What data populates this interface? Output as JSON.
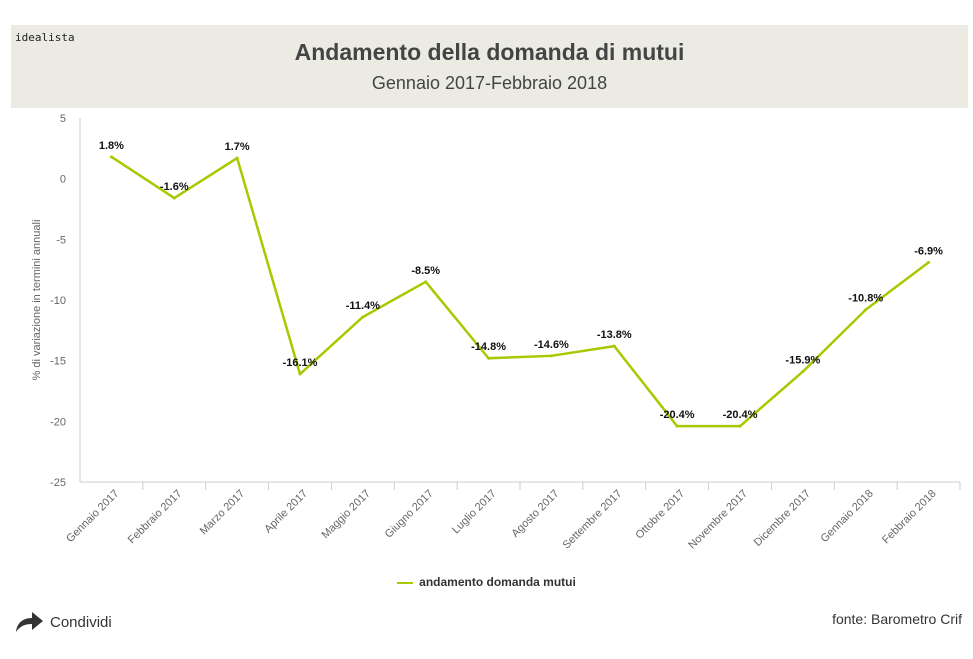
{
  "brand": "idealista",
  "header": {
    "title": "Andamento della domanda di mutui",
    "subtitle": "Gennaio 2017-Febbraio 2018"
  },
  "chart_data": {
    "type": "line",
    "title": "Andamento della domanda di mutui",
    "subtitle": "Gennaio 2017-Febbraio 2018",
    "ylabel": "% di variazione in termini annuali",
    "xlabel": "",
    "ylim": [
      -25,
      5
    ],
    "yticks": [
      5,
      0,
      -5,
      -10,
      -15,
      -20,
      -25
    ],
    "categories": [
      "Gennaio 2017",
      "Febbraio 2017",
      "Marzo 2017",
      "Aprile 2017",
      "Maggio 2017",
      "Giugno 2017",
      "Luglio 2017",
      "Agosto 2017",
      "Settembre 2017",
      "Ottobre 2017",
      "Novembre 2017",
      "Dicembre 2017",
      "Gennaio 2018",
      "Febbraio 2018"
    ],
    "series": [
      {
        "name": "andamento domanda mutui",
        "color": "#a8c800",
        "values": [
          1.8,
          -1.6,
          1.7,
          -16.1,
          -11.4,
          -8.5,
          -14.8,
          -14.6,
          -13.8,
          -20.4,
          -20.4,
          -15.9,
          -10.8,
          -6.9
        ],
        "labels": [
          "1.8%",
          "-1.6%",
          "1.7%",
          "-16.1%",
          "-11.4%",
          "-8.5%",
          "-14.8%",
          "-14.6%",
          "-13.8%",
          "-20.4%",
          "-20.4%",
          "-15.9%",
          "-10.8%",
          "-6.9%"
        ]
      }
    ],
    "legend": "bottom-center",
    "grid": false
  },
  "legend": {
    "label": "andamento domanda mutui"
  },
  "footer": {
    "share_label": "Condividi",
    "source": "fonte: Barometro Crif"
  },
  "icons": {
    "share": "share-arrow-icon"
  }
}
